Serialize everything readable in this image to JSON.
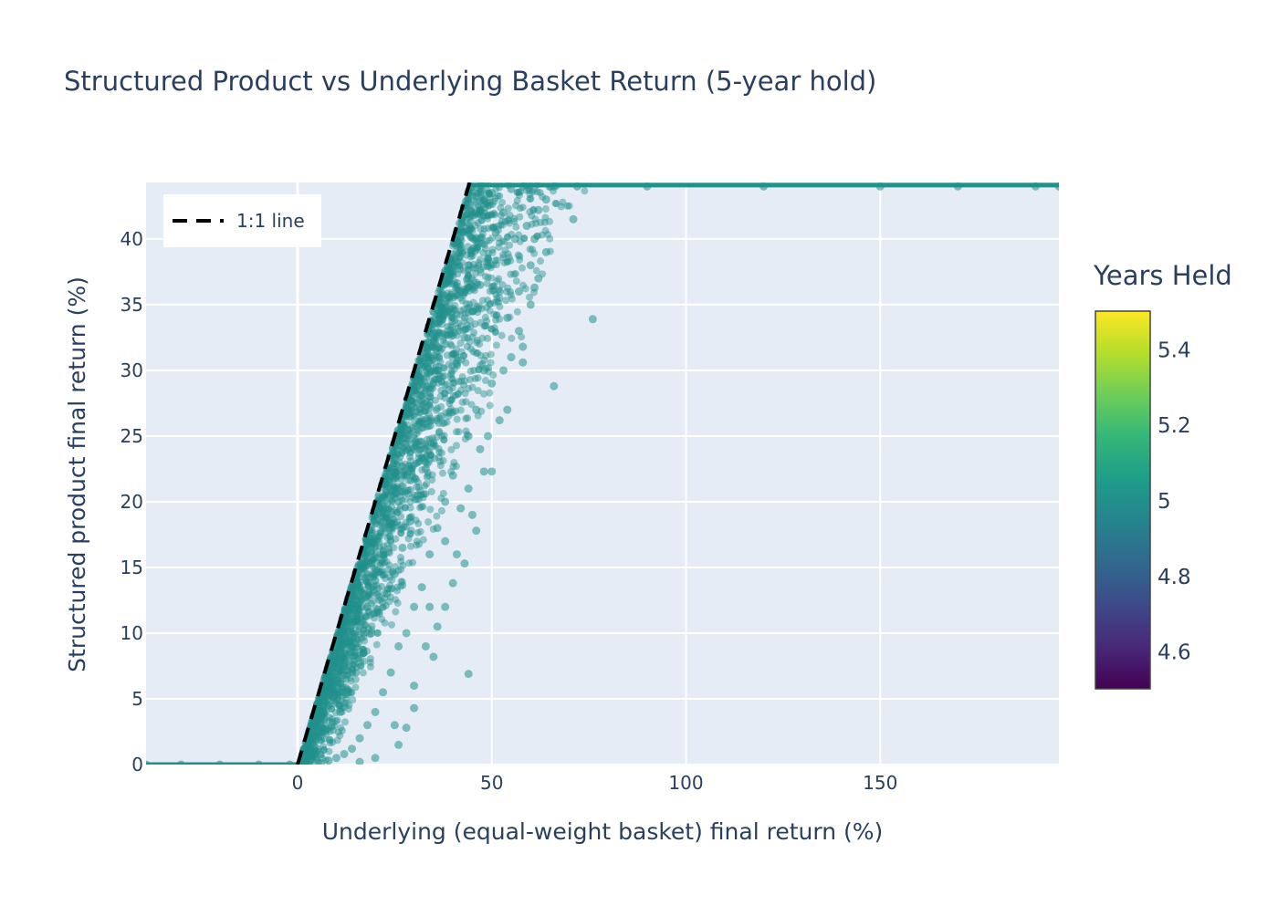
{
  "chart_data": {
    "type": "scatter",
    "title": "Structured Product vs Underlying Basket Return (5-year hold)",
    "xlabel": "Underlying (equal-weight basket) final return (%)",
    "ylabel": "Structured product final return (%)",
    "xlim": [
      -39,
      196
    ],
    "ylim": [
      0,
      44.3
    ],
    "x_ticks": [
      0,
      50,
      100,
      150
    ],
    "y_ticks": [
      0,
      5,
      10,
      15,
      20,
      25,
      30,
      35,
      40
    ],
    "grid": true,
    "legend": {
      "position": "top-left",
      "entries": [
        "1:1 line"
      ]
    },
    "colorbar": {
      "title": "Years Held",
      "range": [
        4.5,
        5.5
      ],
      "ticks": [
        4.6,
        4.8,
        5,
        5.2,
        5.4
      ],
      "colorscale": "viridis"
    },
    "series": [
      {
        "name": "1:1 line",
        "kind": "line",
        "style": "dashed",
        "color": "#000000",
        "points": [
          [
            0,
            0
          ],
          [
            44.3,
            44.3
          ]
        ]
      },
      {
        "kind": "markers",
        "color_value": 5,
        "color": "#21918c",
        "opacity": 0.55,
        "points": [
          [
            -39,
            0
          ],
          [
            -30,
            0
          ],
          [
            -20,
            0
          ],
          [
            -10,
            0
          ],
          [
            -2,
            0
          ],
          [
            0.5,
            0
          ],
          [
            2,
            0.4
          ],
          [
            4,
            1.5
          ],
          [
            6,
            3
          ],
          [
            8,
            4.5
          ],
          [
            10,
            6
          ],
          [
            12,
            7.5
          ],
          [
            14,
            9
          ],
          [
            16,
            10.5
          ],
          [
            18,
            12
          ],
          [
            20,
            14
          ],
          [
            22,
            16
          ],
          [
            24,
            18
          ],
          [
            26,
            20
          ],
          [
            28,
            22
          ],
          [
            30,
            24
          ],
          [
            32,
            26
          ],
          [
            34,
            28
          ],
          [
            36,
            30
          ],
          [
            38,
            32
          ],
          [
            40,
            34
          ],
          [
            42,
            36
          ],
          [
            44,
            38
          ],
          [
            46,
            40
          ],
          [
            48,
            42
          ],
          [
            50,
            43.5
          ],
          [
            3,
            0.2
          ],
          [
            5,
            1
          ],
          [
            7,
            2.5
          ],
          [
            9,
            3.2
          ],
          [
            11,
            4
          ],
          [
            13,
            5.5
          ],
          [
            15,
            7
          ],
          [
            17,
            8.5
          ],
          [
            19,
            10
          ],
          [
            21,
            11.5
          ],
          [
            23,
            13
          ],
          [
            25,
            14.5
          ],
          [
            27,
            16.5
          ],
          [
            29,
            18.5
          ],
          [
            31,
            20.5
          ],
          [
            33,
            22.5
          ],
          [
            35,
            24.5
          ],
          [
            37,
            26.5
          ],
          [
            39,
            28.5
          ],
          [
            41,
            30.5
          ],
          [
            43,
            32.5
          ],
          [
            45,
            34.5
          ],
          [
            47,
            36.5
          ],
          [
            49,
            38.5
          ],
          [
            51,
            40.5
          ],
          [
            53,
            42
          ],
          [
            55,
            43.8
          ],
          [
            58,
            44
          ],
          [
            62,
            42.2
          ],
          [
            66,
            44
          ],
          [
            71,
            41.5
          ],
          [
            66,
            28.8
          ],
          [
            58,
            31.8
          ],
          [
            58,
            30.6
          ],
          [
            76,
            33.9
          ],
          [
            61,
            36.3
          ],
          [
            60,
            38
          ],
          [
            44,
            6.9
          ],
          [
            35,
            8.2
          ],
          [
            30,
            4.3
          ],
          [
            28,
            2.8
          ],
          [
            26,
            1.5
          ],
          [
            20,
            0.5
          ],
          [
            16,
            0.2
          ],
          [
            40,
            13.8
          ],
          [
            43,
            15.3
          ],
          [
            46,
            17.8
          ],
          [
            48,
            22.3
          ],
          [
            50,
            22.3
          ],
          [
            52,
            26.2
          ],
          [
            54,
            27
          ],
          [
            36,
            10.5
          ],
          [
            34,
            12
          ],
          [
            32,
            13.5
          ],
          [
            38,
            17
          ],
          [
            42,
            19.5
          ],
          [
            44,
            21
          ],
          [
            47,
            24
          ],
          [
            50,
            29
          ],
          [
            55,
            31
          ],
          [
            57,
            33
          ],
          [
            60,
            35
          ],
          [
            62,
            37
          ],
          [
            64,
            39
          ],
          [
            56,
            40
          ],
          [
            59,
            41
          ],
          [
            52,
            36
          ],
          [
            54,
            34
          ],
          [
            46,
            27
          ],
          [
            48,
            30
          ],
          [
            44,
            25
          ],
          [
            40,
            22
          ],
          [
            38,
            20
          ],
          [
            36,
            18
          ],
          [
            34,
            16
          ],
          [
            30,
            12
          ],
          [
            28,
            10
          ],
          [
            26,
            9
          ],
          [
            24,
            7
          ],
          [
            22,
            5.5
          ],
          [
            20,
            4
          ],
          [
            18,
            3
          ],
          [
            16,
            2
          ],
          [
            14,
            1.2
          ],
          [
            12,
            0.8
          ],
          [
            10,
            0.5
          ],
          [
            8,
            0.3
          ],
          [
            6,
            0.1
          ],
          [
            25,
            3
          ],
          [
            30,
            6
          ],
          [
            33,
            9
          ],
          [
            38,
            12
          ],
          [
            41,
            16
          ],
          [
            45,
            19
          ],
          [
            49,
            25
          ],
          [
            53,
            30
          ],
          [
            57,
            36
          ],
          [
            61,
            40
          ],
          [
            64,
            43
          ],
          [
            72,
            44
          ],
          [
            90,
            44
          ],
          [
            120,
            44
          ],
          [
            150,
            44
          ],
          [
            170,
            44
          ],
          [
            190,
            44
          ],
          [
            196,
            44
          ]
        ]
      }
    ]
  }
}
